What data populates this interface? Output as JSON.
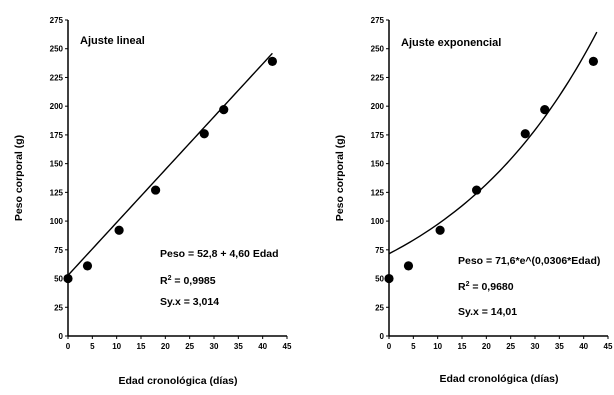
{
  "chart_data": [
    {
      "type": "scatter",
      "title": "Ajuste lineal",
      "xlabel": "Edad cronológica (días)",
      "ylabel": "Peso corporal (g)",
      "xlim": [
        0,
        45
      ],
      "ylim": [
        0,
        275
      ],
      "xticks": [
        "0",
        "5",
        "10",
        "15",
        "20",
        "25",
        "30",
        "35",
        "40",
        "45"
      ],
      "yticks": [
        "0",
        "25",
        "50",
        "75",
        "100",
        "125",
        "150",
        "175",
        "200",
        "225",
        "250",
        "275"
      ],
      "points": [
        {
          "x": 0,
          "y": 50
        },
        {
          "x": 4,
          "y": 61
        },
        {
          "x": 10.5,
          "y": 92
        },
        {
          "x": 18,
          "y": 127
        },
        {
          "x": 28,
          "y": 176
        },
        {
          "x": 32,
          "y": 197
        },
        {
          "x": 42,
          "y": 239
        }
      ],
      "fit": {
        "kind": "linear",
        "a": 52.8,
        "b": 4.6,
        "x_from": 0,
        "x_to": 42
      },
      "annotation": {
        "equation": "Peso = 52,8 + 4,60 Edad",
        "r2_prefix": "R",
        "r2_sup": "2",
        "r2_value": " = 0,9985",
        "syx": "Sy.x = 3,014"
      }
    },
    {
      "type": "scatter",
      "title": "Ajuste exponencial",
      "xlabel": "Edad cronológica (días)",
      "ylabel": "Peso corporal (g)",
      "xlim": [
        0,
        45
      ],
      "ylim": [
        0,
        275
      ],
      "xticks": [
        "0",
        "5",
        "10",
        "15",
        "20",
        "25",
        "30",
        "35",
        "40",
        "45"
      ],
      "yticks": [
        "0",
        "25",
        "50",
        "75",
        "100",
        "125",
        "150",
        "175",
        "200",
        "225",
        "250",
        "275"
      ],
      "points": [
        {
          "x": 0,
          "y": 50
        },
        {
          "x": 4,
          "y": 61
        },
        {
          "x": 10.5,
          "y": 92
        },
        {
          "x": 18,
          "y": 127
        },
        {
          "x": 28,
          "y": 176
        },
        {
          "x": 32,
          "y": 197
        },
        {
          "x": 42,
          "y": 239
        }
      ],
      "fit": {
        "kind": "exponential",
        "a": 71.6,
        "b": 0.0306,
        "x_from": 0,
        "x_to": 42.7
      },
      "annotation": {
        "equation": "Peso = 71,6*e^(0,0306*Edad)",
        "r2_prefix": "R",
        "r2_sup": "2",
        "r2_value": " = 0,9680",
        "syx": "Sy.x = 14,01"
      }
    }
  ]
}
